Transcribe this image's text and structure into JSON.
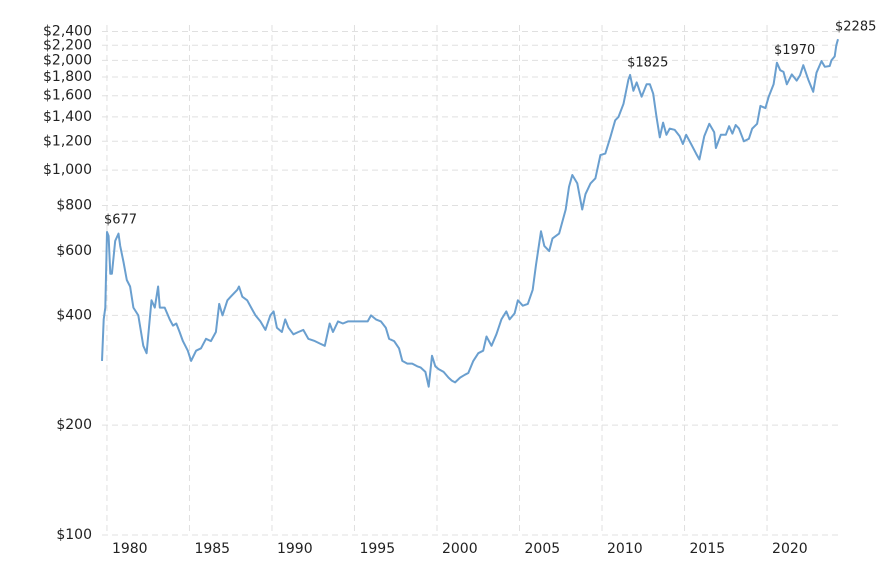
{
  "chart_data": {
    "type": "line",
    "log_y": true,
    "grid": true,
    "xlim": [
      1979.7,
      2024.3
    ],
    "xticks": [
      1980,
      1985,
      1990,
      1995,
      2000,
      2005,
      2010,
      2015,
      2020
    ],
    "ylim": [
      100,
      2500
    ],
    "yticks": [
      {
        "value": 100,
        "label": "$100"
      },
      {
        "value": 200,
        "label": "$200"
      },
      {
        "value": 400,
        "label": "$400"
      },
      {
        "value": 600,
        "label": "$600"
      },
      {
        "value": 800,
        "label": "$800"
      },
      {
        "value": 1000,
        "label": "$1,000"
      },
      {
        "value": 1200,
        "label": "$1,200"
      },
      {
        "value": 1400,
        "label": "$1,400"
      },
      {
        "value": 1600,
        "label": "$1,600"
      },
      {
        "value": 1800,
        "label": "$1,800"
      },
      {
        "value": 2000,
        "label": "$2,000"
      },
      {
        "value": 2200,
        "label": "$2,200"
      },
      {
        "value": 2400,
        "label": "$2,400"
      }
    ],
    "x": [
      1979.7,
      1979.8,
      1979.9,
      1980.0,
      1980.1,
      1980.2,
      1980.3,
      1980.5,
      1980.7,
      1980.8,
      1981.0,
      1981.2,
      1981.4,
      1981.6,
      1981.9,
      1982.2,
      1982.4,
      1982.7,
      1982.9,
      1983.1,
      1983.2,
      1983.5,
      1983.8,
      1984.0,
      1984.2,
      1984.4,
      1984.6,
      1984.9,
      1985.1,
      1985.4,
      1985.7,
      1986.0,
      1986.3,
      1986.6,
      1986.8,
      1987.0,
      1987.3,
      1987.5,
      1987.9,
      1988.0,
      1988.2,
      1988.5,
      1988.8,
      1989.0,
      1989.3,
      1989.6,
      1989.9,
      1990.1,
      1990.3,
      1990.6,
      1990.8,
      1991.0,
      1991.3,
      1991.6,
      1991.9,
      1992.2,
      1992.6,
      1992.9,
      1993.2,
      1993.5,
      1993.7,
      1994.0,
      1994.3,
      1994.6,
      1994.9,
      1995.2,
      1995.5,
      1995.8,
      1996.0,
      1996.3,
      1996.6,
      1996.9,
      1997.1,
      1997.4,
      1997.7,
      1997.9,
      1998.2,
      1998.5,
      1998.8,
      1999.0,
      1999.3,
      1999.5,
      1999.7,
      1999.9,
      2000.1,
      2000.4,
      2000.7,
      2000.9,
      2001.1,
      2001.4,
      2001.7,
      2001.9,
      2002.2,
      2002.5,
      2002.8,
      2003.0,
      2003.3,
      2003.6,
      2003.9,
      2004.2,
      2004.4,
      2004.7,
      2004.9,
      2005.2,
      2005.5,
      2005.8,
      2006.0,
      2006.3,
      2006.5,
      2006.8,
      2007.0,
      2007.4,
      2007.8,
      2008.0,
      2008.2,
      2008.5,
      2008.8,
      2009.0,
      2009.3,
      2009.6,
      2009.9,
      2010.2,
      2010.5,
      2010.8,
      2011.0,
      2011.3,
      2011.6,
      2011.7,
      2011.9,
      2012.1,
      2012.4,
      2012.7,
      2012.9,
      2013.1,
      2013.3,
      2013.5,
      2013.7,
      2013.9,
      2014.1,
      2014.4,
      2014.7,
      2014.9,
      2015.1,
      2015.4,
      2015.7,
      2015.9,
      2016.2,
      2016.5,
      2016.8,
      2016.9,
      2017.2,
      2017.5,
      2017.7,
      2017.9,
      2018.1,
      2018.3,
      2018.6,
      2018.9,
      2019.1,
      2019.4,
      2019.6,
      2019.9,
      2020.1,
      2020.4,
      2020.6,
      2020.8,
      2021.0,
      2021.2,
      2021.5,
      2021.8,
      2022.0,
      2022.2,
      2022.5,
      2022.8,
      2023.0,
      2023.3,
      2023.5,
      2023.8,
      2023.9,
      2024.1,
      2024.2,
      2024.3
    ],
    "series": [
      {
        "color": "#6a9fcf",
        "values": [
          300,
          390,
          420,
          677,
          660,
          520,
          520,
          640,
          670,
          620,
          560,
          500,
          480,
          420,
          400,
          330,
          315,
          440,
          420,
          480,
          420,
          420,
          390,
          375,
          380,
          360,
          340,
          320,
          300,
          320,
          325,
          345,
          340,
          360,
          430,
          400,
          440,
          450,
          470,
          480,
          450,
          440,
          415,
          400,
          385,
          365,
          400,
          410,
          370,
          360,
          390,
          370,
          355,
          360,
          365,
          345,
          340,
          335,
          330,
          380,
          360,
          385,
          380,
          385,
          385,
          385,
          385,
          385,
          400,
          390,
          385,
          370,
          345,
          340,
          325,
          300,
          295,
          295,
          290,
          288,
          280,
          255,
          310,
          290,
          285,
          280,
          270,
          265,
          262,
          270,
          275,
          278,
          300,
          315,
          320,
          350,
          330,
          355,
          390,
          410,
          390,
          405,
          440,
          425,
          430,
          470,
          550,
          680,
          620,
          600,
          650,
          670,
          780,
          900,
          970,
          920,
          780,
          860,
          920,
          950,
          1100,
          1110,
          1230,
          1370,
          1400,
          1520,
          1770,
          1825,
          1650,
          1740,
          1590,
          1720,
          1720,
          1620,
          1400,
          1230,
          1350,
          1250,
          1300,
          1290,
          1240,
          1180,
          1250,
          1180,
          1110,
          1070,
          1240,
          1340,
          1270,
          1150,
          1250,
          1250,
          1320,
          1260,
          1330,
          1300,
          1200,
          1220,
          1300,
          1340,
          1500,
          1480,
          1590,
          1720,
          1970,
          1880,
          1860,
          1720,
          1830,
          1760,
          1820,
          1940,
          1770,
          1640,
          1850,
          1990,
          1920,
          1930,
          2000,
          2050,
          2200,
          2285
        ]
      }
    ],
    "annotations": [
      {
        "label": "$677",
        "x": 1980.0,
        "y": 677
      },
      {
        "label": "$1825",
        "x": 2011.7,
        "y": 1825
      },
      {
        "label": "$1970",
        "x": 2020.6,
        "y": 1970
      },
      {
        "label": "$2285",
        "x": 2024.3,
        "y": 2285
      }
    ]
  }
}
